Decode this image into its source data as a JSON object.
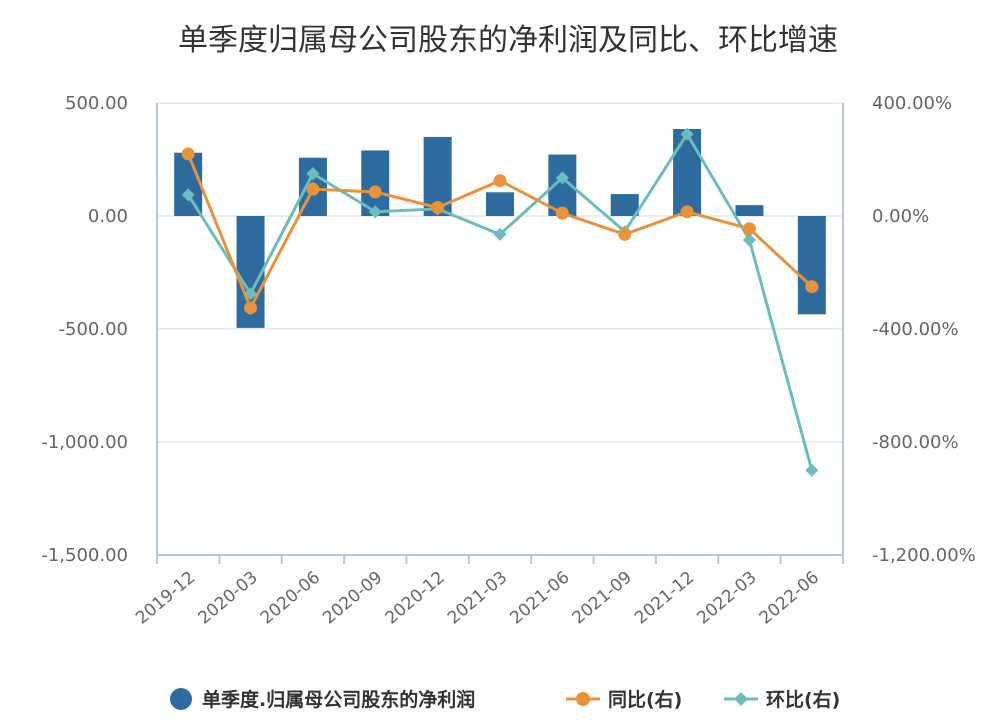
{
  "chart_data": {
    "type": "bar+line",
    "title": "单季度归属母公司股东的净利润及同比、环比增速",
    "categories": [
      "2019-12",
      "2020-03",
      "2020-06",
      "2020-09",
      "2020-12",
      "2021-03",
      "2021-06",
      "2021-09",
      "2021-12",
      "2022-03",
      "2022-06"
    ],
    "left_axis": {
      "ylim": [
        -1500,
        500
      ],
      "ticks": [
        500,
        0,
        -500,
        -1000,
        -1500
      ],
      "tick_labels": [
        "500.00",
        "0.00",
        "-500.00",
        "-1,000.00",
        "-1,500.00"
      ]
    },
    "right_axis": {
      "ylim": [
        -1200,
        400
      ],
      "ticks": [
        400,
        0,
        -400,
        -800,
        -1200
      ],
      "tick_labels": [
        "400.00%",
        "0.00%",
        "-400.00%",
        "-800.00%",
        "-1,200.00%"
      ]
    },
    "series": [
      {
        "name": "单季度.归属母公司股东的净利润",
        "kind": "bar",
        "axis": "left",
        "color": "#2e6b9e",
        "values": [
          280,
          -495,
          258,
          290,
          350,
          105,
          272,
          97,
          385,
          48,
          -435
        ]
      },
      {
        "name": "同比(右)",
        "kind": "line",
        "axis": "right",
        "color": "#e8923a",
        "marker": "circle",
        "values": [
          220,
          -325,
          95,
          85,
          30,
          125,
          10,
          -65,
          15,
          -45,
          -250
        ]
      },
      {
        "name": "环比(右)",
        "kind": "line",
        "axis": "right",
        "color": "#6cbdbd",
        "marker": "diamond",
        "values": [
          75,
          -275,
          150,
          15,
          25,
          -65,
          135,
          -55,
          290,
          -85,
          -900
        ]
      }
    ],
    "grid": true,
    "legend_position": "bottom"
  }
}
